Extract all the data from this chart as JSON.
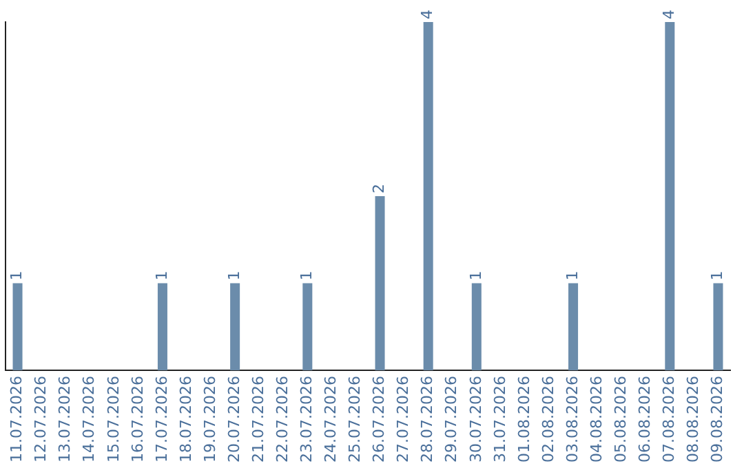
{
  "chart_data": {
    "type": "bar",
    "categories": [
      "11.07.2026",
      "12.07.2026",
      "13.07.2026",
      "14.07.2026",
      "15.07.2026",
      "16.07.2026",
      "17.07.2026",
      "18.07.2026",
      "19.07.2026",
      "20.07.2026",
      "21.07.2026",
      "22.07.2026",
      "23.07.2026",
      "24.07.2026",
      "25.07.2026",
      "26.07.2026",
      "27.07.2026",
      "28.07.2026",
      "29.07.2026",
      "30.07.2026",
      "31.07.2026",
      "01.08.2026",
      "02.08.2026",
      "03.08.2026",
      "04.08.2026",
      "05.08.2026",
      "06.08.2026",
      "07.08.2026",
      "08.08.2026",
      "09.08.2026"
    ],
    "values": [
      1,
      0,
      0,
      0,
      0,
      0,
      1,
      0,
      0,
      1,
      0,
      0,
      1,
      0,
      0,
      2,
      0,
      4,
      0,
      1,
      0,
      0,
      0,
      1,
      0,
      0,
      0,
      4,
      0,
      1
    ],
    "value_labels": [
      "1",
      null,
      null,
      null,
      null,
      null,
      "1",
      null,
      null,
      "1",
      null,
      null,
      "1",
      null,
      null,
      "2",
      null,
      "4",
      null,
      "1",
      null,
      null,
      null,
      "1",
      null,
      null,
      null,
      "4",
      null,
      "1"
    ],
    "color": "#6b8cab",
    "grid": false,
    "legend": false,
    "tick_labels": "x"
  }
}
